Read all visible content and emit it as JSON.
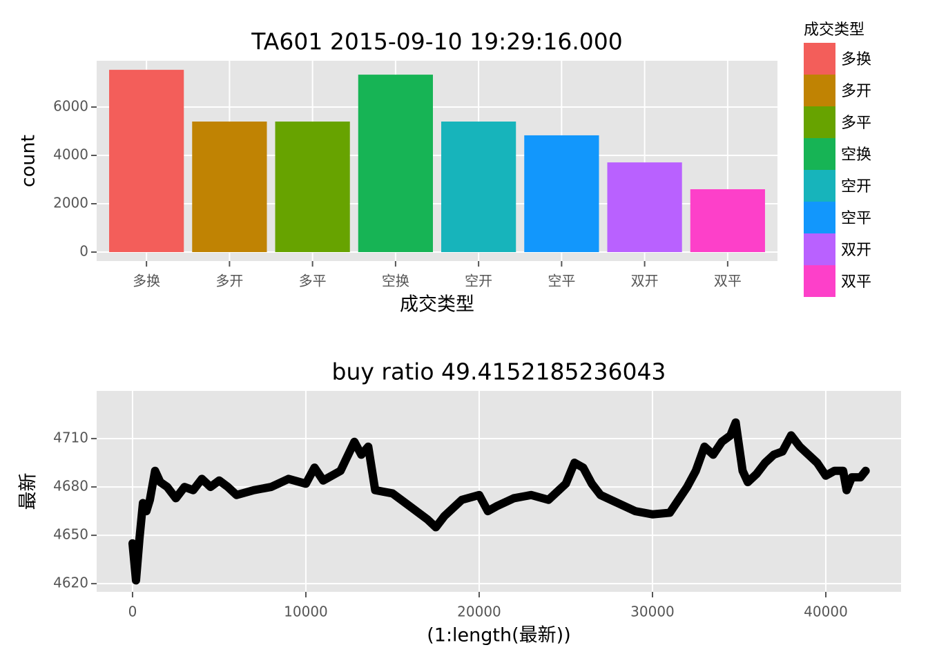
{
  "chart_data": [
    {
      "type": "bar",
      "title": "TA601 2015-09-10 19:29:16.000",
      "x_label": "成交类型",
      "y_label": "count",
      "legend_title": "成交类型",
      "categories": [
        "多换",
        "多开",
        "多平",
        "空换",
        "空开",
        "空平",
        "双开",
        "双平"
      ],
      "values": [
        7540,
        5400,
        5400,
        7340,
        5400,
        4830,
        3710,
        2600
      ],
      "colors": [
        "#f35e5a",
        "#c08303",
        "#67a300",
        "#17b455",
        "#17b4bb",
        "#1297fc",
        "#b961ff",
        "#fd40c9"
      ],
      "ylim": [
        -371,
        7914
      ],
      "yticks": [
        0,
        2000,
        4000,
        6000
      ],
      "grid": true,
      "legend": "right"
    },
    {
      "type": "line",
      "title": "buy ratio 49.4152185236043",
      "x_label": "(1:length(最新))",
      "y_label": "最新",
      "x": [
        0,
        200,
        400,
        600,
        800,
        1000,
        1300,
        1600,
        2000,
        2500,
        3000,
        3500,
        4000,
        4500,
        5000,
        5500,
        6000,
        7000,
        8000,
        9000,
        10000,
        10500,
        11000,
        12000,
        12800,
        13200,
        13600,
        14000,
        15000,
        16000,
        17000,
        17500,
        18000,
        19000,
        20000,
        20500,
        21000,
        22000,
        23000,
        24000,
        25000,
        25500,
        26000,
        26500,
        27000,
        28000,
        29000,
        30000,
        31000,
        31500,
        32000,
        32500,
        33000,
        33500,
        34000,
        34500,
        34800,
        35200,
        35500,
        36000,
        36500,
        37000,
        37500,
        38000,
        38500,
        39000,
        39500,
        40000,
        40500,
        41000,
        41200,
        41500,
        42000,
        42300
      ],
      "series": [
        {
          "name": "最新",
          "color": "#000000",
          "values": [
            4645,
            4622,
            4648,
            4670,
            4665,
            4672,
            4690,
            4683,
            4680,
            4673,
            4680,
            4678,
            4685,
            4680,
            4684,
            4680,
            4675,
            4678,
            4680,
            4685,
            4682,
            4692,
            4684,
            4690,
            4708,
            4700,
            4705,
            4678,
            4676,
            4668,
            4660,
            4655,
            4662,
            4672,
            4675,
            4665,
            4668,
            4673,
            4675,
            4672,
            4682,
            4695,
            4692,
            4682,
            4675,
            4670,
            4665,
            4663,
            4664,
            4672,
            4680,
            4690,
            4705,
            4700,
            4708,
            4712,
            4720,
            4690,
            4683,
            4688,
            4695,
            4700,
            4702,
            4712,
            4705,
            4700,
            4695,
            4687,
            4690,
            4690,
            4678,
            4686,
            4686,
            4690
          ]
        }
      ],
      "xlim": [
        -2070,
        44343
      ],
      "xticks": [
        0,
        10000,
        20000,
        30000,
        40000
      ],
      "ylim": [
        4614.9,
        4739.6
      ],
      "yticks": [
        4620,
        4650,
        4680,
        4710
      ],
      "grid": true
    }
  ]
}
